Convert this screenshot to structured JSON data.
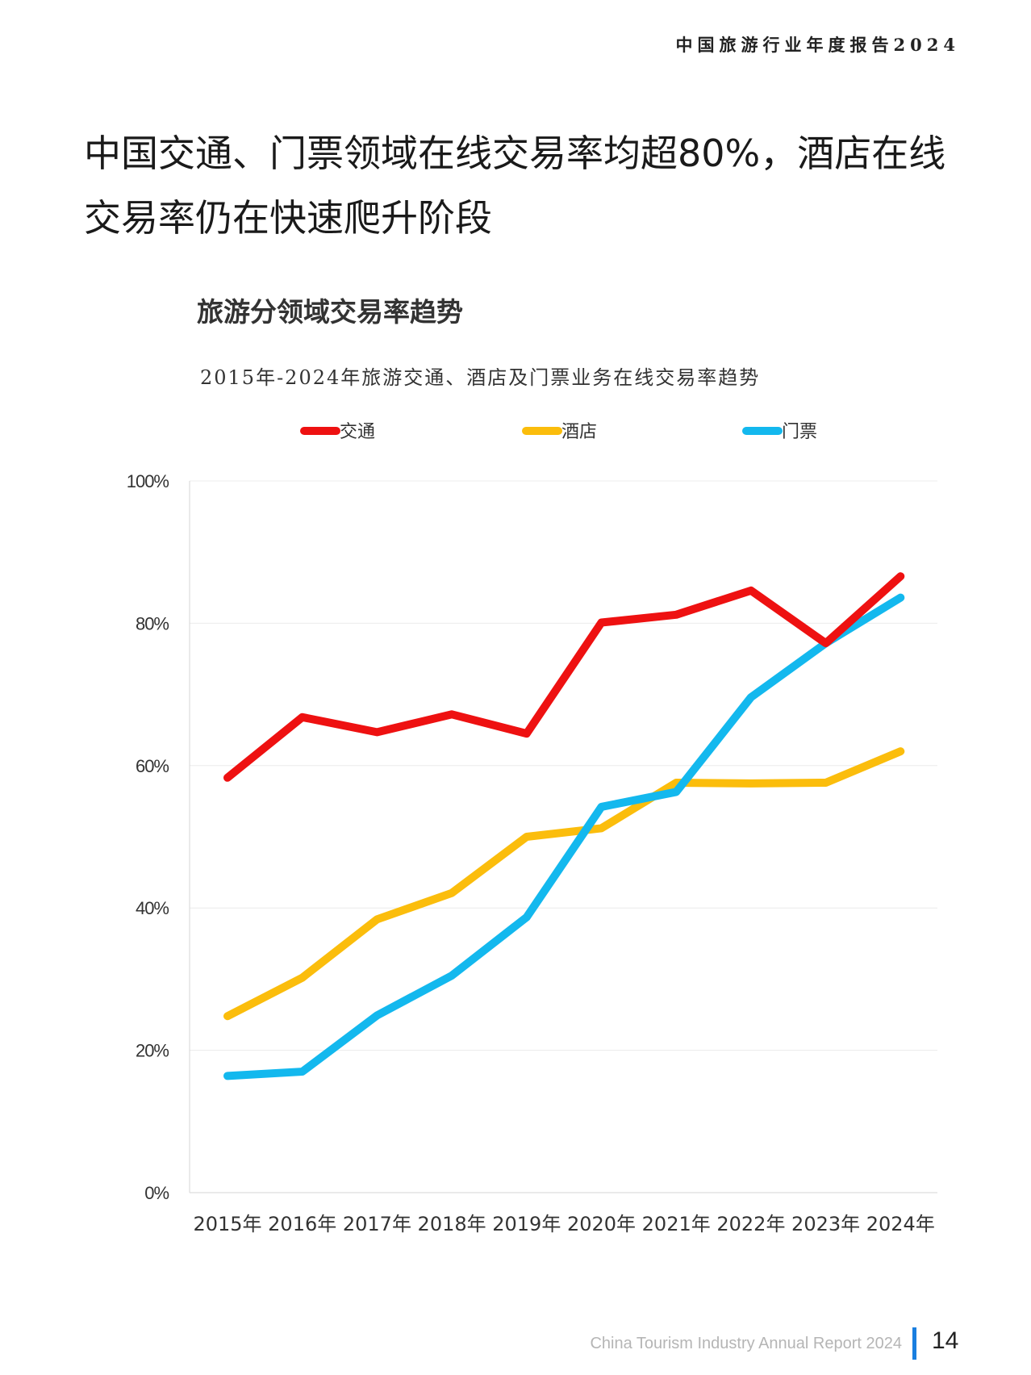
{
  "header": {
    "report_title": "中国旅游行业年度报告2024"
  },
  "headline": "中国交通、门票领域在线交易率均超80%，酒店在线交易率仍在快速爬升阶段",
  "chart_heading": "旅游分领域交易率趋势",
  "chart_data": {
    "type": "line",
    "title": "2015年-2024年旅游交通、酒店及门票业务在线交易率趋势",
    "categories": [
      "2015年",
      "2016年",
      "2017年",
      "2018年",
      "2019年",
      "2020年",
      "2021年",
      "2022年",
      "2023年",
      "2024年"
    ],
    "series": [
      {
        "name": "交通",
        "color": "#ee1111",
        "values": [
          58.3,
          66.8,
          64.7,
          67.2,
          64.5,
          80.1,
          81.2,
          84.6,
          77.2,
          86.6
        ]
      },
      {
        "name": "酒店",
        "color": "#fbbd0c",
        "values": [
          24.8,
          30.2,
          38.4,
          42.1,
          50.0,
          51.2,
          57.6,
          57.5,
          57.6,
          62.0
        ]
      },
      {
        "name": "门票",
        "color": "#13b8ee",
        "values": [
          16.4,
          17.0,
          24.9,
          30.5,
          38.7,
          54.2,
          56.3,
          69.6,
          77.2,
          83.6
        ]
      }
    ],
    "y_ticks": [
      "0%",
      "20%",
      "40%",
      "60%",
      "80%",
      "100%"
    ],
    "ylim": [
      0,
      100
    ],
    "grid": true,
    "legend_position": "top"
  },
  "footer": {
    "report_name": "China Tourism Industry Annual Report 2024",
    "page_number": "14",
    "accent": "#1a7fe0"
  }
}
